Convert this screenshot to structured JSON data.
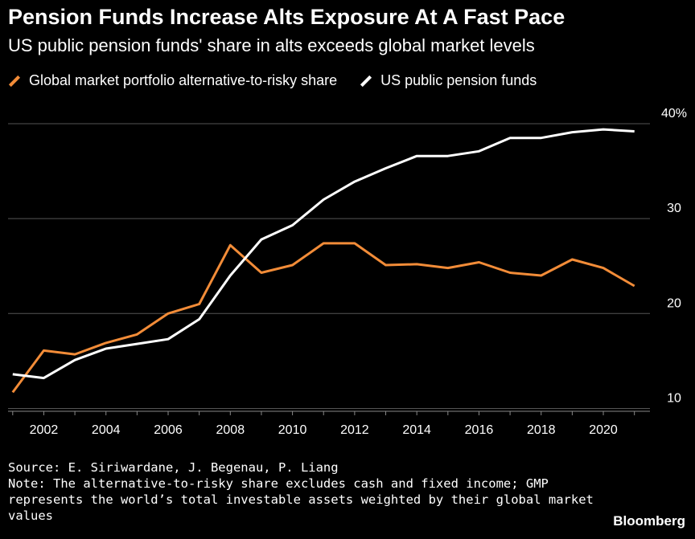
{
  "header": {
    "title": "Pension Funds Increase Alts Exposure At A Fast Pace",
    "subtitle": "US public pension funds' share in alts exceeds global market levels"
  },
  "footer": {
    "source": "Source: E. Siriwardane, J. Begenau, P. Liang",
    "note": "Note: The alternative-to-risky share excludes cash and fixed income; GMP represents the world’s total investable assets weighted by their global market values",
    "brand": "Bloomberg"
  },
  "colors": {
    "background": "#000000",
    "gmp": "#f28c38",
    "us": "#ffffff",
    "grid": "#555555"
  },
  "chart_data": {
    "type": "line",
    "x": [
      2001,
      2002,
      2003,
      2004,
      2005,
      2006,
      2007,
      2008,
      2009,
      2010,
      2011,
      2012,
      2013,
      2014,
      2015,
      2016,
      2017,
      2018,
      2019,
      2020,
      2021
    ],
    "series": [
      {
        "name": "Global market portfolio alternative-to-risky share",
        "color": "#f28c38",
        "values": [
          11.7,
          16.1,
          15.7,
          16.9,
          17.8,
          20.0,
          21.0,
          27.2,
          24.3,
          25.1,
          27.4,
          27.4,
          25.1,
          25.2,
          24.8,
          25.4,
          24.3,
          24.0,
          25.7,
          24.8,
          22.9
        ]
      },
      {
        "name": "US public pension funds",
        "color": "#ffffff",
        "values": [
          13.6,
          13.2,
          15.1,
          16.3,
          16.8,
          17.3,
          19.4,
          24.0,
          27.8,
          29.3,
          32.0,
          33.9,
          35.3,
          36.6,
          36.6,
          37.1,
          38.5,
          38.5,
          39.1,
          39.4,
          39.2
        ]
      }
    ],
    "y_ticks": [
      10,
      20,
      30,
      40
    ],
    "y_tick_labels": [
      "10",
      "20",
      "30",
      "40%"
    ],
    "x_ticks": [
      2002,
      2004,
      2006,
      2008,
      2010,
      2012,
      2014,
      2016,
      2018,
      2020
    ],
    "ylim": [
      9.7,
      40
    ],
    "xlim": [
      2000.85,
      2021.5
    ],
    "grid": true,
    "legend_position": "top-left"
  }
}
